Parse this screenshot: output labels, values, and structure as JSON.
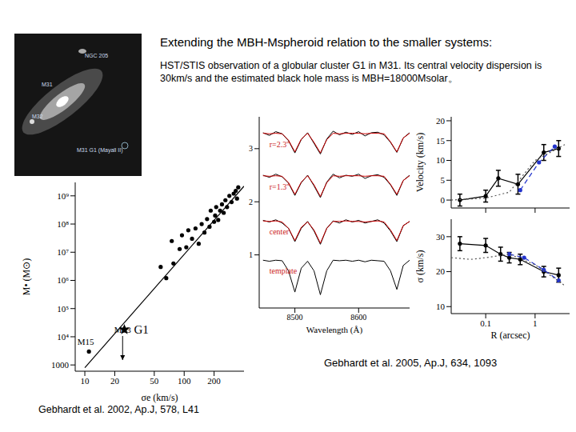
{
  "title": "Extending the MBH-Mspheroid relation to the smaller systems:",
  "text": "HST/STIS observation of a globular cluster G1 in M31. Its central velocity dispersion is 30km/s and the estimated black hole mass is MBH=18000Msolar。",
  "image": {
    "labels": [
      "NGC 205",
      "M31",
      "M32",
      "M31 G1 (Mayall II)"
    ]
  },
  "chart_data": [
    {
      "type": "scatter",
      "log": true,
      "x_label": "σe (km/s)",
      "y_label": "M• (M⊙)",
      "xlim": [
        8,
        400
      ],
      "xticks": [
        10,
        20,
        50,
        100,
        200
      ],
      "ylim": [
        600,
        3000000000
      ],
      "yticks": [
        1000,
        {
          "value": 10000,
          "label": "10⁴"
        },
        {
          "value": 100000,
          "label": "10⁵"
        },
        {
          "value": 1000000,
          "label": "10⁶"
        },
        {
          "value": 10000000,
          "label": "10⁷"
        },
        {
          "value": 100000000,
          "label": "10⁸"
        },
        {
          "value": 1000000000,
          "label": "10⁹"
        }
      ],
      "series": [
        {
          "marker": "circle",
          "color": "#000000",
          "x": [
            58,
            66,
            75,
            78,
            90,
            95,
            105,
            110,
            120,
            130,
            140,
            150,
            160,
            170,
            180,
            185,
            200,
            205,
            210,
            220,
            230,
            240,
            250,
            260,
            270,
            285,
            300,
            315,
            330,
            340,
            350
          ],
          "y": [
            3000000,
            1200000,
            25000000,
            4000000,
            13000000,
            40000000,
            15000000,
            60000000,
            30000000,
            70000000,
            20000000,
            100000000,
            50000000,
            150000000,
            80000000,
            300000000,
            120000000,
            200000000,
            400000000,
            140000000,
            300000000,
            500000000,
            250000000,
            700000000,
            400000000,
            1000000000,
            600000000,
            1200000000,
            1500000000,
            800000000,
            2000000000
          ]
        },
        {
          "label": "M15",
          "marker": "circle",
          "color": "#000000",
          "x": [
            11
          ],
          "y": [
            3000
          ]
        },
        {
          "label": "G1",
          "marker": "star",
          "color": "#000000",
          "x": [
            25
          ],
          "y": [
            18000
          ]
        },
        {
          "label": "M33",
          "marker": "upper_limit",
          "color": "#000000",
          "x": [
            24
          ],
          "y": [
            1500
          ]
        },
        {
          "type": "line",
          "line_style": "solid",
          "color": "#000000",
          "x": [
            10,
            400
          ],
          "y": [
            800,
            2200000000
          ]
        }
      ]
    },
    {
      "type": "line",
      "x_label": "Wavelength (Å)",
      "xlim": [
        8444,
        8680
      ],
      "xticks": [
        8500,
        8600
      ],
      "ylim": [
        0,
        3.6
      ],
      "yticks": [
        1,
        2,
        3
      ],
      "x": [
        8450,
        8460,
        8470,
        8480,
        8490,
        8500,
        8510,
        8520,
        8530,
        8540,
        8550,
        8560,
        8570,
        8580,
        8590,
        8600,
        8610,
        8620,
        8630,
        8640,
        8650,
        8660,
        8670,
        8680
      ],
      "series": [
        {
          "label": "r=2.3''",
          "color": "#000000",
          "values": [
            3.3,
            3.25,
            3.32,
            3.28,
            3.15,
            2.92,
            3.17,
            3.3,
            3.1,
            2.9,
            3.18,
            3.33,
            3.26,
            3.31,
            3.27,
            3.32,
            3.24,
            3.3,
            3.31,
            3.26,
            3.12,
            2.93,
            3.2,
            3.3
          ]
        },
        {
          "color": "#cc0000",
          "values": [
            3.29,
            3.28,
            3.29,
            3.28,
            3.16,
            2.94,
            3.18,
            3.29,
            3.12,
            2.92,
            3.17,
            3.29,
            3.28,
            3.29,
            3.29,
            3.29,
            3.28,
            3.29,
            3.29,
            3.28,
            3.13,
            2.94,
            3.2,
            3.29
          ]
        },
        {
          "label": "r=1.3''",
          "color": "#000000",
          "values": [
            2.5,
            2.46,
            2.52,
            2.47,
            2.35,
            2.12,
            2.36,
            2.5,
            2.3,
            2.08,
            2.37,
            2.52,
            2.45,
            2.5,
            2.48,
            2.52,
            2.44,
            2.49,
            2.51,
            2.46,
            2.32,
            2.12,
            2.4,
            2.5
          ]
        },
        {
          "color": "#cc0000",
          "values": [
            2.49,
            2.48,
            2.49,
            2.48,
            2.36,
            2.14,
            2.37,
            2.49,
            2.32,
            2.1,
            2.36,
            2.49,
            2.48,
            2.49,
            2.49,
            2.49,
            2.48,
            2.49,
            2.49,
            2.48,
            2.33,
            2.14,
            2.4,
            2.49
          ]
        },
        {
          "label": "center",
          "color": "#000000",
          "values": [
            1.65,
            1.62,
            1.66,
            1.6,
            1.5,
            1.25,
            1.5,
            1.63,
            1.45,
            1.2,
            1.5,
            1.64,
            1.6,
            1.66,
            1.62,
            1.65,
            1.6,
            1.63,
            1.66,
            1.6,
            1.45,
            1.25,
            1.55,
            1.63
          ]
        },
        {
          "color": "#cc0000",
          "values": [
            1.64,
            1.63,
            1.64,
            1.62,
            1.5,
            1.27,
            1.52,
            1.62,
            1.47,
            1.22,
            1.5,
            1.63,
            1.63,
            1.64,
            1.63,
            1.63,
            1.62,
            1.63,
            1.64,
            1.62,
            1.47,
            1.27,
            1.55,
            1.63
          ]
        },
        {
          "label": "template",
          "color": "#000000",
          "values": [
            0.9,
            0.88,
            0.9,
            0.89,
            0.7,
            0.3,
            0.75,
            0.88,
            0.7,
            0.25,
            0.7,
            0.9,
            0.89,
            0.9,
            0.88,
            0.9,
            0.87,
            0.9,
            0.89,
            0.88,
            0.7,
            0.35,
            0.8,
            0.9
          ]
        }
      ]
    },
    {
      "type": "scatter",
      "log": "x",
      "y_label": "Velocity (km/s)",
      "xlim": [
        0.02,
        5
      ],
      "xticks": [
        0.1,
        1
      ],
      "tick_labels": "y",
      "ylim": [
        -2,
        21
      ],
      "yticks": [
        0,
        5,
        10,
        15,
        20
      ],
      "series": [
        {
          "color": "#000000",
          "marker": "circle",
          "line_style": "solid",
          "x": [
            0.03,
            0.1,
            0.18,
            0.45,
            1.5,
            3
          ],
          "y": [
            0,
            1,
            5.5,
            4,
            12,
            13
          ],
          "errors": [
            1.5,
            1.5,
            2,
            2.5,
            2,
            2
          ]
        },
        {
          "color": "#2233cc",
          "marker": "circle",
          "line_style": "dashed",
          "x": [
            0.5,
            1.2,
            2.5
          ],
          "y": [
            2.5,
            9.5,
            13.5
          ]
        },
        {
          "type": "line",
          "color": "#555555",
          "line_style": "dotted",
          "x": [
            0.02,
            0.1,
            0.3,
            1,
            2,
            4
          ],
          "y": [
            0,
            0.5,
            2,
            10,
            12,
            14
          ]
        }
      ]
    },
    {
      "type": "scatter",
      "log": "x",
      "x_label": "R (arcsec)",
      "y_label": "σ (km/s)",
      "xlim": [
        0.02,
        5
      ],
      "xticks": [
        0.1,
        1
      ],
      "ylim": [
        8,
        35
      ],
      "yticks": [
        10,
        20,
        30
      ],
      "series": [
        {
          "color": "#000000",
          "marker": "circle",
          "line_style": "solid",
          "x": [
            0.03,
            0.1,
            0.2,
            0.3,
            0.5,
            1.5,
            3
          ],
          "y": [
            28,
            27.5,
            25,
            24,
            23.5,
            20,
            19
          ],
          "errors": [
            2,
            2,
            2,
            1.5,
            1.5,
            1.5,
            2
          ]
        },
        {
          "color": "#2233cc",
          "marker": "circle",
          "line_style": "dashed",
          "x": [
            0.3,
            0.6,
            1.5,
            3
          ],
          "y": [
            25,
            24,
            20.5,
            17.5
          ]
        },
        {
          "type": "line",
          "color": "#555555",
          "line_style": "dotted",
          "x": [
            0.02,
            0.05,
            0.1,
            0.3,
            1,
            4
          ],
          "y": [
            24,
            23.5,
            24,
            25,
            22,
            16
          ]
        }
      ]
    }
  ],
  "citations": [
    "Gebhardt et al. 2002, Ap.J, 578, L41",
    "Gebhardt et al. 2005, Ap.J, 634, 1093"
  ]
}
